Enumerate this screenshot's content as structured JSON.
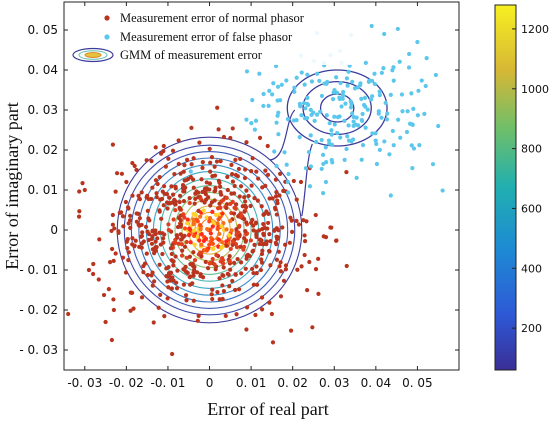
{
  "chart_data": {
    "type": "scatter",
    "xlabel": "Error of real part",
    "ylabel": "Error of imaginary part",
    "xlim": [
      -0.035,
      0.06
    ],
    "ylim": [
      -0.035,
      0.057
    ],
    "xticks": [
      {
        "v": -0.03,
        "label": "-0. 03"
      },
      {
        "v": -0.02,
        "label": "-0. 02"
      },
      {
        "v": -0.01,
        "label": "-0. 01"
      },
      {
        "v": 0,
        "label": "0"
      },
      {
        "v": 0.01,
        "label": "0. 01"
      },
      {
        "v": 0.02,
        "label": "0. 02"
      },
      {
        "v": 0.03,
        "label": "0. 03"
      },
      {
        "v": 0.04,
        "label": "0. 04"
      },
      {
        "v": 0.05,
        "label": "0. 05"
      }
    ],
    "yticks": [
      {
        "v": -0.03,
        "label": "- 0. 03"
      },
      {
        "v": -0.02,
        "label": "- 0. 02"
      },
      {
        "v": -0.01,
        "label": "- 0. 01"
      },
      {
        "v": 0,
        "label": "0"
      },
      {
        "v": 0.01,
        "label": "0. 01"
      },
      {
        "v": 0.02,
        "label": "0. 02"
      },
      {
        "v": 0.03,
        "label": "0. 03"
      },
      {
        "v": 0.04,
        "label": "0. 04"
      },
      {
        "v": 0.05,
        "label": "0. 05"
      }
    ],
    "legend": {
      "position": "top-left",
      "entries": [
        {
          "label": "Measurement error of normal phasor",
          "marker": "dot",
          "color": "#b8341e"
        },
        {
          "label": "Measurement error of false phasor",
          "marker": "dot",
          "color": "#5cc7ec"
        },
        {
          "label": "GMM of measurement error",
          "marker": "ellipse",
          "color": "#3b3b9a"
        }
      ]
    },
    "series": [
      {
        "label_ref": 0,
        "color": "#b8341e",
        "distribution": {
          "center": [
            0.0,
            0.0
          ],
          "std": [
            0.011,
            0.0095
          ],
          "count": 700
        },
        "points": [
          [
            -0.03,
            0.01
          ],
          [
            -0.029,
            -0.01
          ],
          [
            -0.025,
            -0.023
          ],
          [
            -0.023,
            -0.02
          ],
          [
            -0.034,
            -0.021
          ],
          [
            -0.009,
            -0.031
          ],
          [
            -0.028,
            -0.011
          ],
          [
            0.033,
            -0.009
          ],
          [
            -0.02,
            0.012
          ],
          [
            -0.018,
            0.016
          ],
          [
            0.005,
            0.023
          ],
          [
            0.014,
            0.021
          ],
          [
            0.022,
            0.012
          ],
          [
            0.024,
            -0.008
          ],
          [
            0.015,
            -0.021
          ],
          [
            -0.011,
            0.021
          ]
        ]
      },
      {
        "label_ref": 1,
        "color": "#5cc7ec",
        "distribution": {
          "center": [
            0.031,
            0.03
          ],
          "std": [
            0.011,
            0.0085
          ],
          "count": 210
        },
        "points": [
          [
            0.013,
            0.034
          ],
          [
            0.016,
            0.041
          ],
          [
            0.048,
            0.044
          ],
          [
            0.052,
            0.036
          ],
          [
            0.055,
            0.026
          ],
          [
            0.05,
            0.047
          ],
          [
            0.039,
            0.051
          ],
          [
            0.042,
            0.049
          ],
          [
            0.019,
            0.014
          ],
          [
            0.028,
            0.012
          ]
        ]
      }
    ],
    "gmm_contours": [
      {
        "center": [
          0.0,
          0.0
        ],
        "radii": [
          [
            0.0222,
            0.0232
          ],
          [
            0.0205,
            0.0212
          ],
          [
            0.0188,
            0.0196
          ],
          [
            0.017,
            0.018
          ],
          [
            0.0152,
            0.0163
          ],
          [
            0.0135,
            0.0146
          ],
          [
            0.0118,
            0.0128
          ],
          [
            0.01,
            0.0111
          ],
          [
            0.0083,
            0.0094
          ],
          [
            0.0066,
            0.0077
          ],
          [
            0.005,
            0.006
          ],
          [
            0.0035,
            0.0044
          ],
          [
            0.0022,
            0.0028
          ]
        ]
      },
      {
        "center": [
          0.0307,
          0.0305
        ],
        "radii": [
          [
            0.012,
            0.0095
          ],
          [
            0.0082,
            0.0066
          ],
          [
            0.004,
            0.0035
          ]
        ]
      }
    ],
    "colorbar": {
      "ticks": [
        200,
        400,
        600,
        800,
        1000,
        1200
      ],
      "range": [
        60,
        1280
      ],
      "colormap": "parula"
    }
  }
}
